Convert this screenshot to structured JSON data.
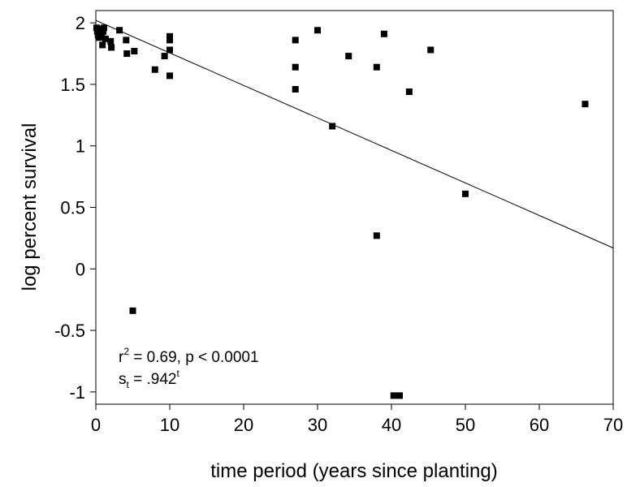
{
  "chart_data": {
    "type": "scatter",
    "title": "",
    "xlabel": "time period (years since planting)",
    "ylabel": "log percent survival",
    "xlim": [
      0,
      70
    ],
    "ylim": [
      -1.1,
      2.1
    ],
    "xticks": [
      0,
      10,
      20,
      30,
      40,
      50,
      60,
      70
    ],
    "xtick_labels": [
      "0",
      "10",
      "20",
      "30",
      "40",
      "50",
      "60",
      "70"
    ],
    "yticks": [
      2,
      1.5,
      1,
      0.5,
      0,
      -0.5,
      -1
    ],
    "ytick_labels": [
      "2",
      "1.5",
      "1",
      "0.5",
      "0",
      "-0.5",
      "-1"
    ],
    "grid": false,
    "points": [
      {
        "x": 0.1,
        "y": 1.96
      },
      {
        "x": 0.2,
        "y": 1.93
      },
      {
        "x": 0.3,
        "y": 1.9
      },
      {
        "x": 0.5,
        "y": 1.95
      },
      {
        "x": 0.6,
        "y": 1.92
      },
      {
        "x": 0.8,
        "y": 1.89
      },
      {
        "x": 0.9,
        "y": 1.95
      },
      {
        "x": 1.0,
        "y": 1.93
      },
      {
        "x": 1.1,
        "y": 1.96
      },
      {
        "x": 0.4,
        "y": 1.88
      },
      {
        "x": 0.9,
        "y": 1.82
      },
      {
        "x": 1.3,
        "y": 1.87
      },
      {
        "x": 2.0,
        "y": 1.85
      },
      {
        "x": 2.1,
        "y": 1.8
      },
      {
        "x": 3.2,
        "y": 1.94
      },
      {
        "x": 4.1,
        "y": 1.86
      },
      {
        "x": 4.2,
        "y": 1.75
      },
      {
        "x": 5.2,
        "y": 1.77
      },
      {
        "x": 8.0,
        "y": 1.62
      },
      {
        "x": 9.3,
        "y": 1.73
      },
      {
        "x": 10.0,
        "y": 1.89
      },
      {
        "x": 10.0,
        "y": 1.86
      },
      {
        "x": 10.0,
        "y": 1.78
      },
      {
        "x": 10.0,
        "y": 1.57
      },
      {
        "x": 5.0,
        "y": -0.34
      },
      {
        "x": 27.0,
        "y": 1.86
      },
      {
        "x": 27.0,
        "y": 1.64
      },
      {
        "x": 27.0,
        "y": 1.46
      },
      {
        "x": 30.0,
        "y": 1.94
      },
      {
        "x": 32.0,
        "y": 1.16
      },
      {
        "x": 34.2,
        "y": 1.73
      },
      {
        "x": 38.0,
        "y": 1.64
      },
      {
        "x": 38.0,
        "y": 0.27
      },
      {
        "x": 39.0,
        "y": 1.91
      },
      {
        "x": 40.3,
        "y": -1.03
      },
      {
        "x": 41.1,
        "y": -1.03
      },
      {
        "x": 42.4,
        "y": 1.44
      },
      {
        "x": 45.3,
        "y": 1.78
      },
      {
        "x": 50.0,
        "y": 0.61
      },
      {
        "x": 66.2,
        "y": 1.34
      }
    ],
    "fit_line": {
      "x": [
        0,
        70
      ],
      "y": [
        2.02,
        0.17
      ]
    },
    "annotations": {
      "r2_base": "r",
      "r2_sup": "2",
      "r2_rest": " = 0.69, p < 0.0001",
      "st_base": "s",
      "st_sub": "t",
      "st_rest": " = .942",
      "st_sup": "t"
    }
  }
}
